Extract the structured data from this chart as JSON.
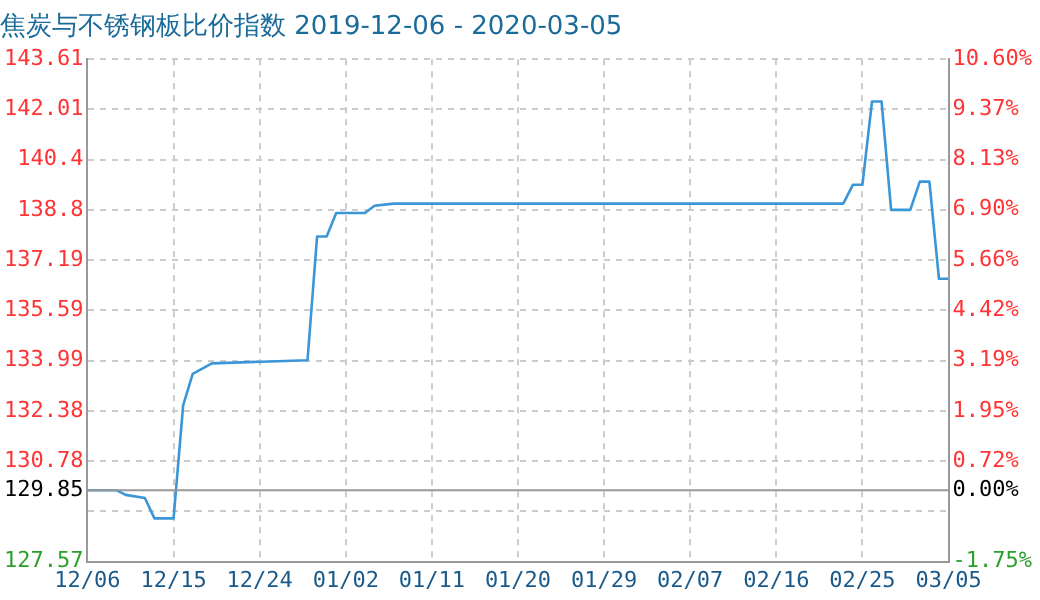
{
  "chart_data": {
    "type": "line",
    "title": "焦炭与不锈钢板比价指数 2019-12-06 - 2020-03-05",
    "x": [
      "2019-12-06",
      "2019-12-09",
      "2019-12-10",
      "2019-12-12",
      "2019-12-13",
      "2019-12-15",
      "2019-12-16",
      "2019-12-17",
      "2019-12-19",
      "2019-12-29",
      "2019-12-30",
      "2019-12-31",
      "2020-01-01",
      "2020-01-04",
      "2020-01-05",
      "2020-01-07",
      "2020-02-23",
      "2020-02-24",
      "2020-02-25",
      "2020-02-26",
      "2020-02-27",
      "2020-02-28",
      "2020-03-01",
      "2020-03-02",
      "2020-03-03",
      "2020-03-04",
      "2020-03-05"
    ],
    "series": [
      {
        "color": "#3a96d6",
        "values": [
          129.85,
          129.85,
          129.7,
          129.6,
          128.95,
          128.95,
          132.56,
          133.56,
          133.9,
          134.0,
          137.95,
          137.95,
          138.7,
          138.7,
          138.93,
          139.0,
          139.0,
          139.6,
          139.6,
          142.26,
          142.26,
          138.8,
          138.8,
          139.7,
          139.7,
          136.6,
          136.6
        ]
      }
    ],
    "xlim": [
      "2019-12-06",
      "2020-03-05"
    ],
    "xticks": [
      {
        "value": "2019-12-06",
        "label": "12/06"
      },
      {
        "value": "2019-12-15",
        "label": "12/15"
      },
      {
        "value": "2019-12-24",
        "label": "12/24"
      },
      {
        "value": "2020-01-02",
        "label": "01/02"
      },
      {
        "value": "2020-01-11",
        "label": "01/11"
      },
      {
        "value": "2020-01-20",
        "label": "01/20"
      },
      {
        "value": "2020-01-29",
        "label": "01/29"
      },
      {
        "value": "2020-02-07",
        "label": "02/07"
      },
      {
        "value": "2020-02-16",
        "label": "02/16"
      },
      {
        "value": "2020-02-25",
        "label": "02/25"
      },
      {
        "value": "2020-03-05",
        "label": "03/05"
      }
    ],
    "ylim": [
      127.57,
      143.61
    ],
    "yticks": [
      127.57,
      {
        "value": 129.17,
        "label": null
      },
      129.85,
      130.78,
      132.38,
      133.99,
      135.59,
      137.19,
      138.8,
      140.4,
      142.01,
      143.61
    ],
    "y2lim": [
      -1.75,
      10.6
    ],
    "y2ticks": [
      {
        "value": -1.75,
        "label": "-1.75%"
      },
      {
        "value": -0.52,
        "label": null
      },
      {
        "value": 0,
        "label": "0.00%"
      },
      {
        "value": 0.72,
        "label": "0.72%"
      },
      {
        "value": 1.95,
        "label": "1.95%"
      },
      {
        "value": 3.19,
        "label": "3.19%"
      },
      {
        "value": 4.42,
        "label": "4.42%"
      },
      {
        "value": 5.66,
        "label": "5.66%"
      },
      {
        "value": 6.9,
        "label": "6.90%"
      },
      {
        "value": 8.13,
        "label": "8.13%"
      },
      {
        "value": 9.37,
        "label": "9.37%"
      },
      {
        "value": 10.6,
        "label": "10.60%"
      }
    ],
    "ref_lines": [
      {
        "axis": "y",
        "value": 129.85,
        "color": "#999999"
      }
    ],
    "grid": true,
    "legend": false
  }
}
